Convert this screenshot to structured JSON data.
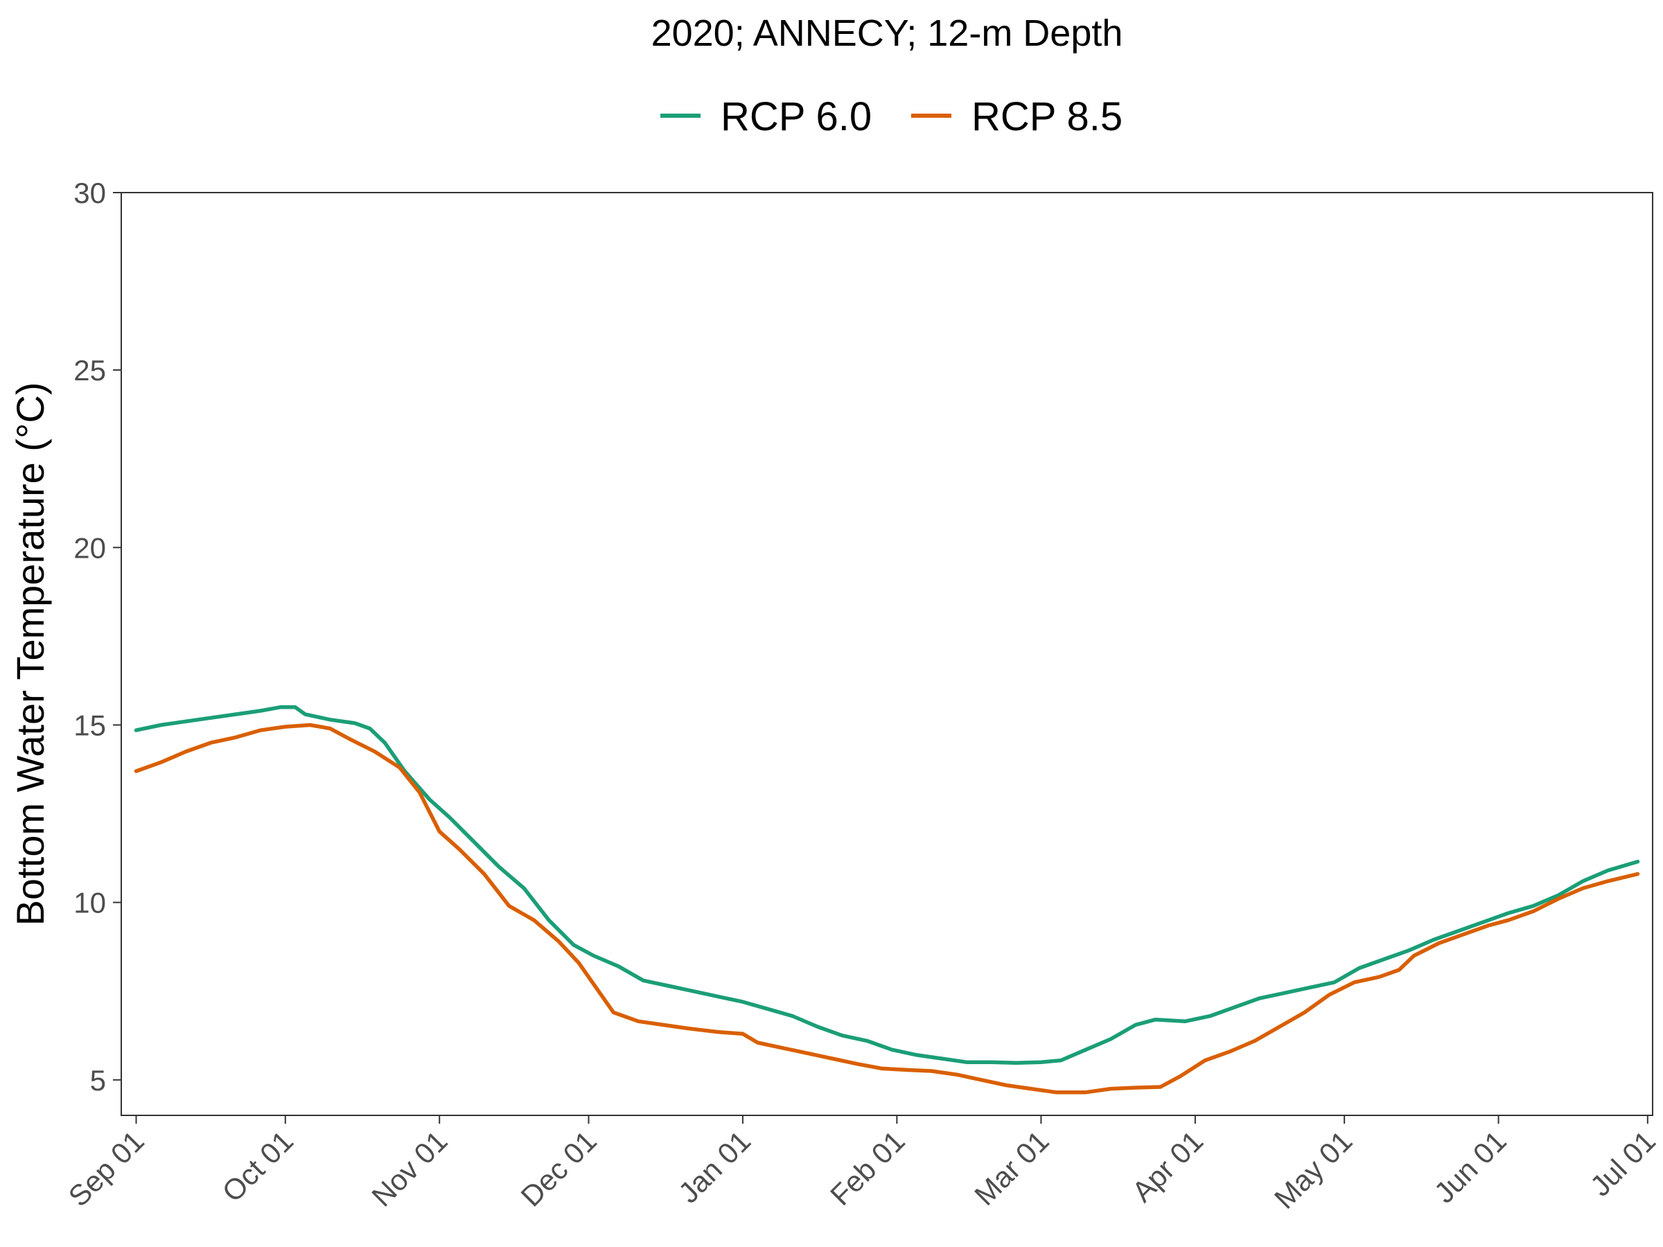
{
  "chart_data": {
    "type": "line",
    "title": "2020; ANNECY; 12-m Depth",
    "xlabel": "",
    "ylabel": "Bottom Water Temperature (°C)",
    "ylim": [
      4,
      30
    ],
    "yticks": [
      5,
      10,
      15,
      20,
      25,
      30
    ],
    "xlim": [
      "2019-08-29",
      "2020-07-02"
    ],
    "xticks": [
      {
        "date": "2019-09-01",
        "label": "Sep 01"
      },
      {
        "date": "2019-10-01",
        "label": "Oct 01"
      },
      {
        "date": "2019-11-01",
        "label": "Nov 01"
      },
      {
        "date": "2019-12-01",
        "label": "Dec 01"
      },
      {
        "date": "2020-01-01",
        "label": "Jan 01"
      },
      {
        "date": "2020-02-01",
        "label": "Feb 01"
      },
      {
        "date": "2020-03-01",
        "label": "Mar 01"
      },
      {
        "date": "2020-04-01",
        "label": "Apr 01"
      },
      {
        "date": "2020-05-01",
        "label": "May 01"
      },
      {
        "date": "2020-06-01",
        "label": "Jun 01"
      },
      {
        "date": "2020-07-01",
        "label": "Jul 01"
      }
    ],
    "grid": false,
    "legend_position": "top",
    "series": [
      {
        "name": "RCP 6.0",
        "color": "#1b9e77",
        "points": [
          [
            "2019-09-01",
            14.85
          ],
          [
            "2019-09-06",
            15.0
          ],
          [
            "2019-09-11",
            15.1
          ],
          [
            "2019-09-16",
            15.2
          ],
          [
            "2019-09-21",
            15.3
          ],
          [
            "2019-09-26",
            15.4
          ],
          [
            "2019-09-30",
            15.5
          ],
          [
            "2019-10-03",
            15.5
          ],
          [
            "2019-10-05",
            15.3
          ],
          [
            "2019-10-10",
            15.15
          ],
          [
            "2019-10-15",
            15.05
          ],
          [
            "2019-10-18",
            14.9
          ],
          [
            "2019-10-21",
            14.5
          ],
          [
            "2019-10-25",
            13.7
          ],
          [
            "2019-10-30",
            12.9
          ],
          [
            "2019-11-03",
            12.4
          ],
          [
            "2019-11-08",
            11.7
          ],
          [
            "2019-11-13",
            11.0
          ],
          [
            "2019-11-18",
            10.4
          ],
          [
            "2019-11-23",
            9.5
          ],
          [
            "2019-11-28",
            8.8
          ],
          [
            "2019-12-02",
            8.5
          ],
          [
            "2019-12-07",
            8.2
          ],
          [
            "2019-12-12",
            7.8
          ],
          [
            "2019-12-17",
            7.65
          ],
          [
            "2019-12-22",
            7.5
          ],
          [
            "2019-12-27",
            7.35
          ],
          [
            "2020-01-01",
            7.2
          ],
          [
            "2020-01-06",
            7.0
          ],
          [
            "2020-01-11",
            6.8
          ],
          [
            "2020-01-16",
            6.5
          ],
          [
            "2020-01-21",
            6.25
          ],
          [
            "2020-01-26",
            6.1
          ],
          [
            "2020-01-31",
            5.85
          ],
          [
            "2020-02-05",
            5.7
          ],
          [
            "2020-02-10",
            5.6
          ],
          [
            "2020-02-15",
            5.5
          ],
          [
            "2020-02-20",
            5.5
          ],
          [
            "2020-02-25",
            5.48
          ],
          [
            "2020-03-01",
            5.5
          ],
          [
            "2020-03-05",
            5.55
          ],
          [
            "2020-03-10",
            5.85
          ],
          [
            "2020-03-15",
            6.15
          ],
          [
            "2020-03-20",
            6.55
          ],
          [
            "2020-03-24",
            6.7
          ],
          [
            "2020-03-30",
            6.65
          ],
          [
            "2020-04-04",
            6.8
          ],
          [
            "2020-04-09",
            7.05
          ],
          [
            "2020-04-14",
            7.3
          ],
          [
            "2020-04-19",
            7.45
          ],
          [
            "2020-04-24",
            7.6
          ],
          [
            "2020-04-29",
            7.75
          ],
          [
            "2020-05-04",
            8.15
          ],
          [
            "2020-05-09",
            8.4
          ],
          [
            "2020-05-14",
            8.65
          ],
          [
            "2020-05-19",
            8.95
          ],
          [
            "2020-05-24",
            9.2
          ],
          [
            "2020-05-29",
            9.45
          ],
          [
            "2020-06-03",
            9.7
          ],
          [
            "2020-06-08",
            9.9
          ],
          [
            "2020-06-13",
            10.2
          ],
          [
            "2020-06-18",
            10.6
          ],
          [
            "2020-06-23",
            10.9
          ],
          [
            "2020-06-29",
            11.15
          ]
        ]
      },
      {
        "name": "RCP 8.5",
        "color": "#d95f02",
        "points": [
          [
            "2019-09-01",
            13.7
          ],
          [
            "2019-09-06",
            13.95
          ],
          [
            "2019-09-11",
            14.25
          ],
          [
            "2019-09-16",
            14.5
          ],
          [
            "2019-09-21",
            14.65
          ],
          [
            "2019-09-26",
            14.85
          ],
          [
            "2019-10-01",
            14.95
          ],
          [
            "2019-10-06",
            15.0
          ],
          [
            "2019-10-10",
            14.9
          ],
          [
            "2019-10-14",
            14.6
          ],
          [
            "2019-10-19",
            14.25
          ],
          [
            "2019-10-24",
            13.8
          ],
          [
            "2019-10-28",
            13.1
          ],
          [
            "2019-11-01",
            12.0
          ],
          [
            "2019-11-05",
            11.5
          ],
          [
            "2019-11-10",
            10.8
          ],
          [
            "2019-11-15",
            9.9
          ],
          [
            "2019-11-20",
            9.5
          ],
          [
            "2019-11-25",
            8.9
          ],
          [
            "2019-11-29",
            8.3
          ],
          [
            "2019-12-03",
            7.5
          ],
          [
            "2019-12-06",
            6.9
          ],
          [
            "2019-12-11",
            6.65
          ],
          [
            "2019-12-16",
            6.55
          ],
          [
            "2019-12-21",
            6.45
          ],
          [
            "2019-12-27",
            6.35
          ],
          [
            "2020-01-01",
            6.3
          ],
          [
            "2020-01-04",
            6.05
          ],
          [
            "2020-01-09",
            5.9
          ],
          [
            "2020-01-14",
            5.75
          ],
          [
            "2020-01-19",
            5.6
          ],
          [
            "2020-01-24",
            5.45
          ],
          [
            "2020-01-29",
            5.32
          ],
          [
            "2020-02-03",
            5.28
          ],
          [
            "2020-02-08",
            5.25
          ],
          [
            "2020-02-13",
            5.15
          ],
          [
            "2020-02-18",
            5.0
          ],
          [
            "2020-02-23",
            4.85
          ],
          [
            "2020-02-28",
            4.75
          ],
          [
            "2020-03-04",
            4.65
          ],
          [
            "2020-03-10",
            4.65
          ],
          [
            "2020-03-15",
            4.75
          ],
          [
            "2020-03-20",
            4.78
          ],
          [
            "2020-03-25",
            4.8
          ],
          [
            "2020-03-29",
            5.1
          ],
          [
            "2020-04-03",
            5.55
          ],
          [
            "2020-04-08",
            5.8
          ],
          [
            "2020-04-13",
            6.1
          ],
          [
            "2020-04-18",
            6.5
          ],
          [
            "2020-04-23",
            6.9
          ],
          [
            "2020-04-28",
            7.4
          ],
          [
            "2020-05-03",
            7.75
          ],
          [
            "2020-05-08",
            7.9
          ],
          [
            "2020-05-12",
            8.1
          ],
          [
            "2020-05-15",
            8.5
          ],
          [
            "2020-05-20",
            8.85
          ],
          [
            "2020-05-25",
            9.1
          ],
          [
            "2020-05-30",
            9.35
          ],
          [
            "2020-06-03",
            9.5
          ],
          [
            "2020-06-08",
            9.75
          ],
          [
            "2020-06-13",
            10.1
          ],
          [
            "2020-06-18",
            10.4
          ],
          [
            "2020-06-23",
            10.6
          ],
          [
            "2020-06-29",
            10.8
          ]
        ]
      }
    ]
  }
}
